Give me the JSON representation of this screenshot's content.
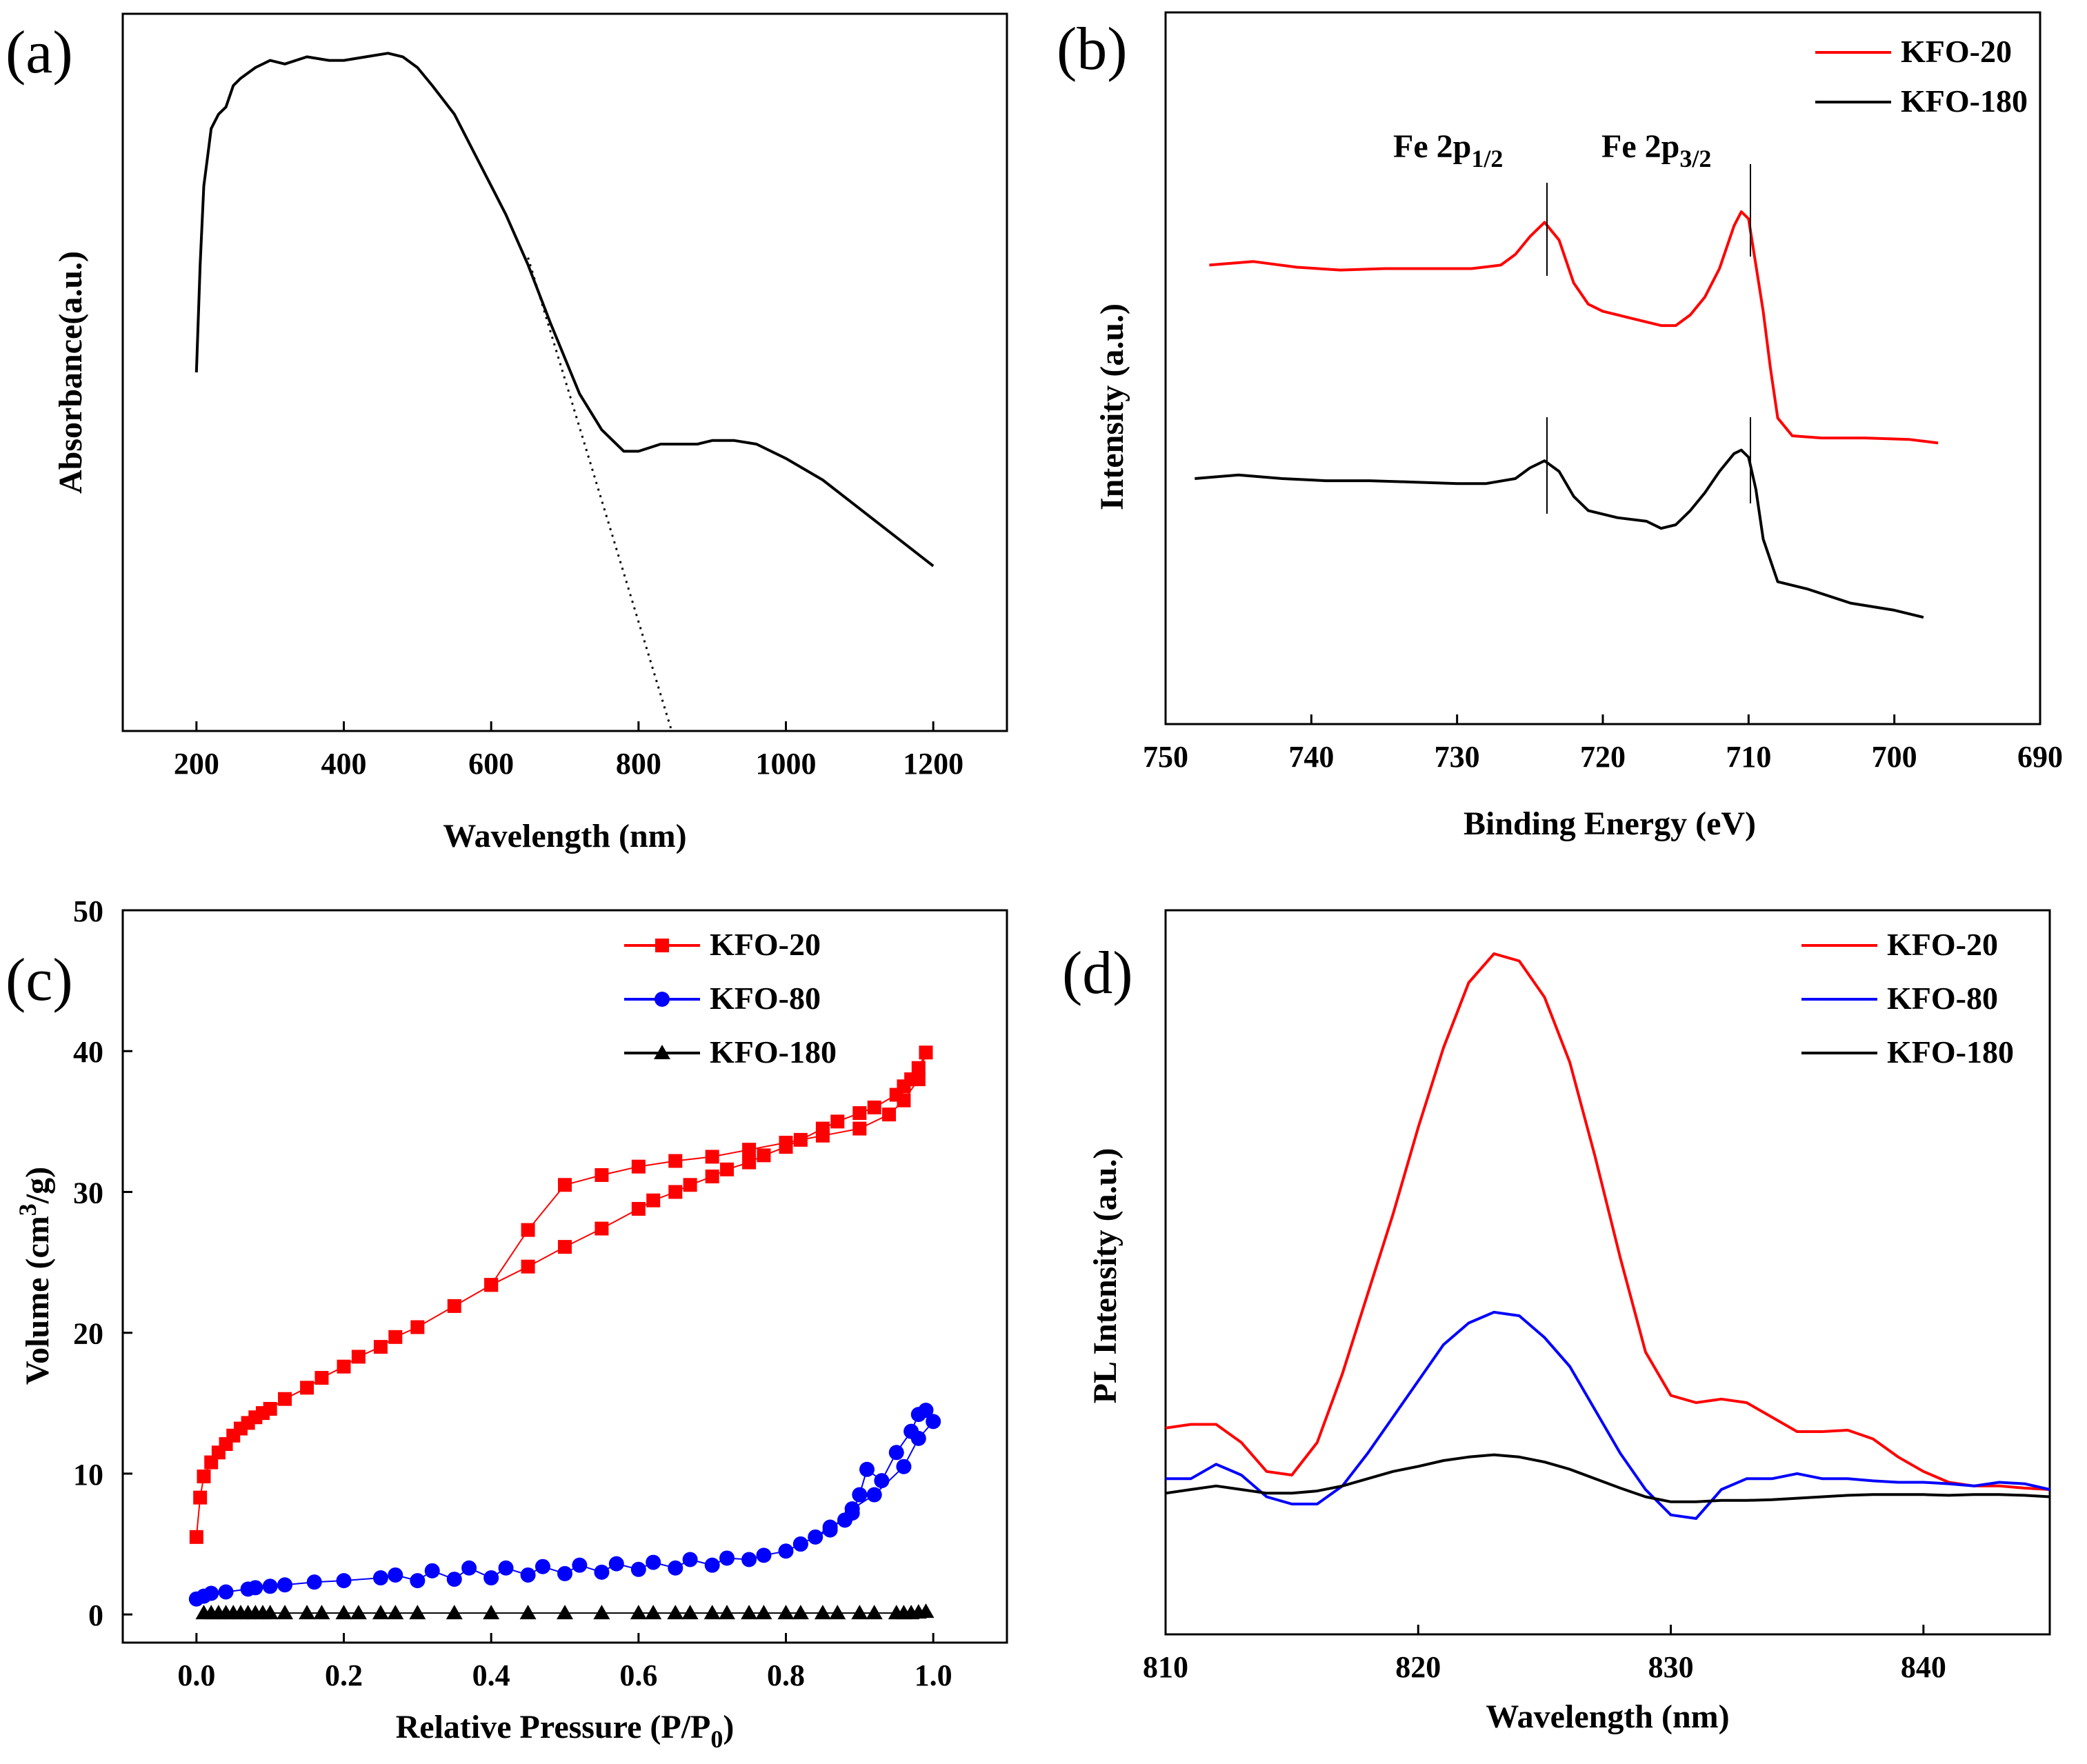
{
  "figure": {
    "background": "#ffffff"
  },
  "colors": {
    "red": "#ff0000",
    "blue": "#0000ff",
    "black": "#000000"
  },
  "chart_data": [
    {
      "panel": "(a)",
      "type": "line",
      "xlabel": "Wavelength (nm)",
      "ylabel": "Absorbance(a.u.)",
      "xlim": [
        100,
        1300
      ],
      "ylim": [
        0,
        1
      ],
      "xticks": [
        "200",
        "400",
        "600",
        "800",
        "1000",
        "1200"
      ],
      "series": [
        {
          "name": "absorbance",
          "style": "solid",
          "color": "#000000",
          "x": [
            200,
            205,
            210,
            215,
            220,
            230,
            240,
            250,
            260,
            280,
            300,
            320,
            350,
            380,
            400,
            430,
            460,
            480,
            500,
            520,
            550,
            580,
            600,
            620,
            650,
            680,
            700,
            720,
            750,
            780,
            800,
            830,
            850,
            880,
            900,
            930,
            960,
            1000,
            1050,
            1100,
            1150,
            1200
          ],
          "y": [
            0.5,
            0.65,
            0.76,
            0.8,
            0.84,
            0.86,
            0.87,
            0.9,
            0.91,
            0.925,
            0.935,
            0.93,
            0.94,
            0.935,
            0.935,
            0.94,
            0.945,
            0.94,
            0.925,
            0.9,
            0.86,
            0.8,
            0.76,
            0.72,
            0.65,
            0.57,
            0.52,
            0.47,
            0.42,
            0.39,
            0.39,
            0.4,
            0.4,
            0.4,
            0.405,
            0.405,
            0.4,
            0.38,
            0.35,
            0.31,
            0.27,
            0.23
          ]
        },
        {
          "name": "tangent",
          "style": "dotted",
          "color": "#000000",
          "x": [
            650,
            845
          ],
          "y": [
            0.66,
            0.0
          ]
        }
      ]
    },
    {
      "panel": "(b)",
      "type": "line",
      "xlabel": "Binding Energy (eV)",
      "ylabel": "Intensity (a.u.)",
      "xlim": [
        750,
        690
      ],
      "ylim": [
        0,
        1
      ],
      "xticks": [
        "750",
        "740",
        "730",
        "720",
        "710",
        "700",
        "690"
      ],
      "annotations": [
        {
          "label": "Fe 2p",
          "sub": "1/2",
          "x": 724
        },
        {
          "label": "Fe 2p",
          "sub": "3/2",
          "x": 710.5
        }
      ],
      "legend": [
        "KFO-20",
        "KFO-180"
      ],
      "series": [
        {
          "name": "KFO-20",
          "color": "#ff0000",
          "x": [
            747,
            744,
            741,
            738,
            735,
            732,
            729,
            727,
            726,
            725,
            724,
            723,
            722,
            721,
            720,
            719,
            718,
            716,
            715,
            714,
            713,
            712,
            711,
            710.5,
            710,
            709,
            708.5,
            708,
            707,
            705,
            702,
            699,
            697
          ],
          "y": [
            0.645,
            0.65,
            0.642,
            0.638,
            0.64,
            0.64,
            0.64,
            0.645,
            0.66,
            0.685,
            0.705,
            0.68,
            0.62,
            0.59,
            0.58,
            0.575,
            0.57,
            0.56,
            0.56,
            0.575,
            0.6,
            0.64,
            0.7,
            0.72,
            0.71,
            0.58,
            0.5,
            0.43,
            0.405,
            0.402,
            0.402,
            0.4,
            0.395
          ]
        },
        {
          "name": "KFO-180",
          "color": "#000000",
          "x": [
            748,
            745,
            742,
            739,
            736,
            733,
            730,
            728,
            726,
            725,
            724,
            723,
            722,
            721,
            719,
            717,
            716,
            715,
            714,
            713,
            712,
            711,
            710.5,
            710,
            709.5,
            709,
            708,
            706,
            703,
            700,
            698
          ],
          "y": [
            0.345,
            0.35,
            0.345,
            0.342,
            0.342,
            0.34,
            0.338,
            0.338,
            0.345,
            0.36,
            0.37,
            0.355,
            0.32,
            0.3,
            0.29,
            0.285,
            0.275,
            0.28,
            0.3,
            0.325,
            0.355,
            0.38,
            0.385,
            0.375,
            0.33,
            0.26,
            0.2,
            0.19,
            0.17,
            0.16,
            0.15
          ]
        }
      ]
    },
    {
      "panel": "(c)",
      "type": "scatter",
      "xlabel": "Relative Pressure (P/P",
      "xlabel_sub": "0",
      "xlabel_end": ")",
      "ylabel": "Volume (cm",
      "ylabel_sup": "3",
      "ylabel_end": "/g)",
      "xlim": [
        -0.1,
        1.1
      ],
      "ylim": [
        -2,
        50
      ],
      "xticks": [
        "0.0",
        "0.2",
        "0.4",
        "0.6",
        "0.8",
        "1.0"
      ],
      "yticks": [
        "0",
        "10",
        "20",
        "30",
        "40",
        "50"
      ],
      "legend": [
        "KFO-20",
        "KFO-80",
        "KFO-180"
      ],
      "series": [
        {
          "name": "KFO-20",
          "marker": "square",
          "color": "#ff0000",
          "x": [
            0.0,
            0.005,
            0.01,
            0.02,
            0.03,
            0.04,
            0.05,
            0.06,
            0.07,
            0.08,
            0.09,
            0.1,
            0.12,
            0.15,
            0.17,
            0.2,
            0.22,
            0.25,
            0.27,
            0.3,
            0.35,
            0.4,
            0.45,
            0.5,
            0.55,
            0.6,
            0.62,
            0.65,
            0.67,
            0.7,
            0.72,
            0.75,
            0.77,
            0.8,
            0.82,
            0.85,
            0.87,
            0.9,
            0.92,
            0.95,
            0.96,
            0.97,
            0.98,
            0.99,
            0.98,
            0.96,
            0.94,
            0.9,
            0.85,
            0.8,
            0.75,
            0.7,
            0.65,
            0.6,
            0.55,
            0.5,
            0.45,
            0.4
          ],
          "y": [
            5.5,
            8.3,
            9.8,
            10.8,
            11.5,
            12.1,
            12.7,
            13.2,
            13.6,
            14.0,
            14.3,
            14.6,
            15.3,
            16.1,
            16.8,
            17.6,
            18.3,
            19.0,
            19.7,
            20.4,
            21.9,
            23.4,
            24.7,
            26.1,
            27.4,
            28.8,
            29.4,
            30.0,
            30.5,
            31.1,
            31.6,
            32.1,
            32.6,
            33.2,
            33.7,
            34.5,
            35.0,
            35.6,
            36.0,
            36.9,
            37.5,
            38.0,
            38.8,
            39.9,
            38.0,
            36.5,
            35.5,
            34.5,
            34.0,
            33.5,
            33.0,
            32.5,
            32.2,
            31.8,
            31.2,
            30.5,
            27.3,
            23.4
          ]
        },
        {
          "name": "KFO-80",
          "marker": "circle",
          "color": "#0000ff",
          "x": [
            0.0,
            0.01,
            0.02,
            0.04,
            0.07,
            0.08,
            0.1,
            0.12,
            0.16,
            0.2,
            0.25,
            0.27,
            0.3,
            0.32,
            0.35,
            0.37,
            0.4,
            0.42,
            0.45,
            0.47,
            0.5,
            0.52,
            0.55,
            0.57,
            0.6,
            0.62,
            0.65,
            0.67,
            0.7,
            0.72,
            0.75,
            0.77,
            0.8,
            0.82,
            0.84,
            0.86,
            0.88,
            0.89,
            0.9,
            0.91,
            0.93,
            0.95,
            0.97,
            0.98,
            0.99,
            1.0,
            0.98,
            0.96,
            0.92,
            0.89,
            0.86,
            0.82
          ],
          "y": [
            1.1,
            1.3,
            1.5,
            1.6,
            1.8,
            1.9,
            2.0,
            2.1,
            2.3,
            2.4,
            2.6,
            2.8,
            2.4,
            3.1,
            2.5,
            3.3,
            2.6,
            3.3,
            2.8,
            3.4,
            2.9,
            3.5,
            3.0,
            3.6,
            3.2,
            3.7,
            3.3,
            3.9,
            3.5,
            4.0,
            3.9,
            4.2,
            4.5,
            5.0,
            5.5,
            6.2,
            6.7,
            7.2,
            8.5,
            10.3,
            9.5,
            11.5,
            13.0,
            14.2,
            14.5,
            13.7,
            12.5,
            10.5,
            8.5,
            7.5,
            6.0,
            5.0
          ]
        },
        {
          "name": "KFO-180",
          "marker": "triangle",
          "color": "#000000",
          "x": [
            0.01,
            0.02,
            0.03,
            0.04,
            0.05,
            0.06,
            0.07,
            0.08,
            0.09,
            0.1,
            0.12,
            0.15,
            0.17,
            0.2,
            0.22,
            0.25,
            0.27,
            0.3,
            0.35,
            0.4,
            0.45,
            0.5,
            0.55,
            0.6,
            0.62,
            0.65,
            0.67,
            0.7,
            0.72,
            0.75,
            0.77,
            0.8,
            0.82,
            0.85,
            0.87,
            0.9,
            0.92,
            0.95,
            0.96,
            0.97,
            0.98,
            0.99
          ],
          "y": [
            0.1,
            0.1,
            0.1,
            0.1,
            0.1,
            0.1,
            0.1,
            0.1,
            0.1,
            0.1,
            0.1,
            0.1,
            0.1,
            0.1,
            0.1,
            0.1,
            0.1,
            0.1,
            0.1,
            0.1,
            0.1,
            0.1,
            0.1,
            0.1,
            0.1,
            0.1,
            0.1,
            0.1,
            0.1,
            0.1,
            0.1,
            0.1,
            0.1,
            0.1,
            0.1,
            0.1,
            0.1,
            0.1,
            0.1,
            0.1,
            0.15,
            0.2
          ]
        }
      ]
    },
    {
      "panel": "(d)",
      "type": "line",
      "xlabel": "Wavelength (nm)",
      "ylabel": "PL Intensity (a.u.)",
      "xlim": [
        810,
        845
      ],
      "ylim": [
        0,
        1
      ],
      "xticks": [
        "810",
        "820",
        "830",
        "840"
      ],
      "legend": [
        "KFO-20",
        "KFO-80",
        "KFO-180"
      ],
      "series": [
        {
          "name": "KFO-20",
          "color": "#ff0000",
          "x": [
            810,
            811,
            812,
            813,
            814,
            815,
            816,
            817,
            818,
            819,
            820,
            821,
            822,
            823,
            824,
            825,
            826,
            827,
            828,
            829,
            830,
            831,
            832,
            833,
            834,
            835,
            836,
            837,
            838,
            839,
            840,
            841,
            842,
            843,
            844,
            845
          ],
          "y": [
            0.285,
            0.29,
            0.29,
            0.265,
            0.225,
            0.22,
            0.265,
            0.36,
            0.47,
            0.58,
            0.7,
            0.81,
            0.9,
            0.94,
            0.93,
            0.88,
            0.79,
            0.66,
            0.52,
            0.39,
            0.33,
            0.32,
            0.325,
            0.32,
            0.3,
            0.28,
            0.28,
            0.282,
            0.27,
            0.245,
            0.225,
            0.21,
            0.205,
            0.205,
            0.202,
            0.2
          ]
        },
        {
          "name": "KFO-80",
          "color": "#0000ff",
          "x": [
            810,
            811,
            812,
            813,
            814,
            815,
            816,
            817,
            818,
            819,
            820,
            821,
            822,
            823,
            824,
            825,
            826,
            827,
            828,
            829,
            830,
            831,
            832,
            833,
            834,
            835,
            836,
            837,
            838,
            839,
            840,
            841,
            842,
            843,
            844,
            845
          ],
          "y": [
            0.215,
            0.215,
            0.235,
            0.22,
            0.19,
            0.18,
            0.18,
            0.205,
            0.25,
            0.3,
            0.35,
            0.4,
            0.43,
            0.445,
            0.44,
            0.41,
            0.37,
            0.31,
            0.25,
            0.2,
            0.165,
            0.16,
            0.2,
            0.215,
            0.215,
            0.222,
            0.215,
            0.215,
            0.212,
            0.21,
            0.21,
            0.208,
            0.205,
            0.21,
            0.208,
            0.2
          ]
        },
        {
          "name": "KFO-180",
          "color": "#000000",
          "x": [
            810,
            811,
            812,
            813,
            814,
            815,
            816,
            817,
            818,
            819,
            820,
            821,
            822,
            823,
            824,
            825,
            826,
            827,
            828,
            829,
            830,
            831,
            832,
            833,
            834,
            835,
            836,
            837,
            838,
            839,
            840,
            841,
            842,
            843,
            844,
            845
          ],
          "y": [
            0.195,
            0.2,
            0.205,
            0.2,
            0.195,
            0.195,
            0.198,
            0.205,
            0.215,
            0.225,
            0.232,
            0.24,
            0.245,
            0.248,
            0.245,
            0.238,
            0.228,
            0.215,
            0.202,
            0.19,
            0.183,
            0.183,
            0.185,
            0.185,
            0.186,
            0.188,
            0.19,
            0.192,
            0.193,
            0.193,
            0.193,
            0.192,
            0.193,
            0.193,
            0.192,
            0.19
          ]
        }
      ]
    }
  ]
}
